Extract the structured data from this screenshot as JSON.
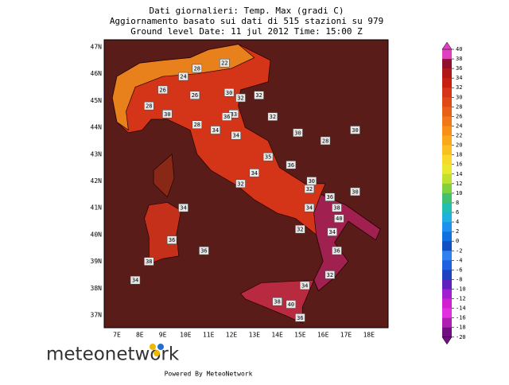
{
  "header": {
    "lines": [
      "Dati giornalieri: Temp. Max (gradi C)",
      "Aggiornamento basato sui dati di 515 stazioni su 979",
      "Ground level   Date: 11 jul 2012  Time: 15:00 Z"
    ]
  },
  "map": {
    "lon_labels": [
      "7E",
      "8E",
      "9E",
      "10E",
      "11E",
      "12E",
      "13E",
      "14E",
      "15E",
      "16E",
      "17E",
      "18E"
    ],
    "lat_labels": [
      "47N",
      "46N",
      "45N",
      "44N",
      "43N",
      "42N",
      "41N",
      "40N",
      "39N",
      "38N",
      "37N"
    ],
    "stations": [
      "28",
      "22",
      "24",
      "26",
      "30",
      "32",
      "33",
      "32",
      "26",
      "28",
      "30",
      "28",
      "34",
      "36",
      "34",
      "32",
      "30",
      "28",
      "35",
      "36",
      "34",
      "32",
      "30",
      "32",
      "36",
      "38",
      "34",
      "40",
      "32",
      "34",
      "36",
      "32",
      "34",
      "38",
      "40",
      "36",
      "34",
      "36",
      "38",
      "36",
      "34",
      "30",
      "30"
    ]
  },
  "colorbar": {
    "ticks": [
      40,
      38,
      36,
      34,
      32,
      30,
      28,
      26,
      24,
      22,
      20,
      18,
      16,
      14,
      12,
      10,
      8,
      6,
      4,
      2,
      0,
      -2,
      -4,
      -6,
      -8,
      -10,
      -12,
      -14,
      -16,
      -18,
      -20
    ],
    "colors": [
      "#e040c0",
      "#901030",
      "#b01818",
      "#c82010",
      "#d83418",
      "#e04818",
      "#e86018",
      "#f07818",
      "#f89018",
      "#f8a818",
      "#f8c020",
      "#f8d828",
      "#e8e830",
      "#c0e030",
      "#80d040",
      "#40c070",
      "#20c0b0",
      "#20b0e0",
      "#2090f0",
      "#1070e0",
      "#1050c0",
      "#3080f0",
      "#2060e0",
      "#2040c0",
      "#6020c0",
      "#a020d0",
      "#d020d0",
      "#e030e0",
      "#b020b0",
      "#701080"
    ]
  },
  "footer": {
    "logo": "meteonetwork",
    "powered": "Powered By MeteoNetwork"
  }
}
